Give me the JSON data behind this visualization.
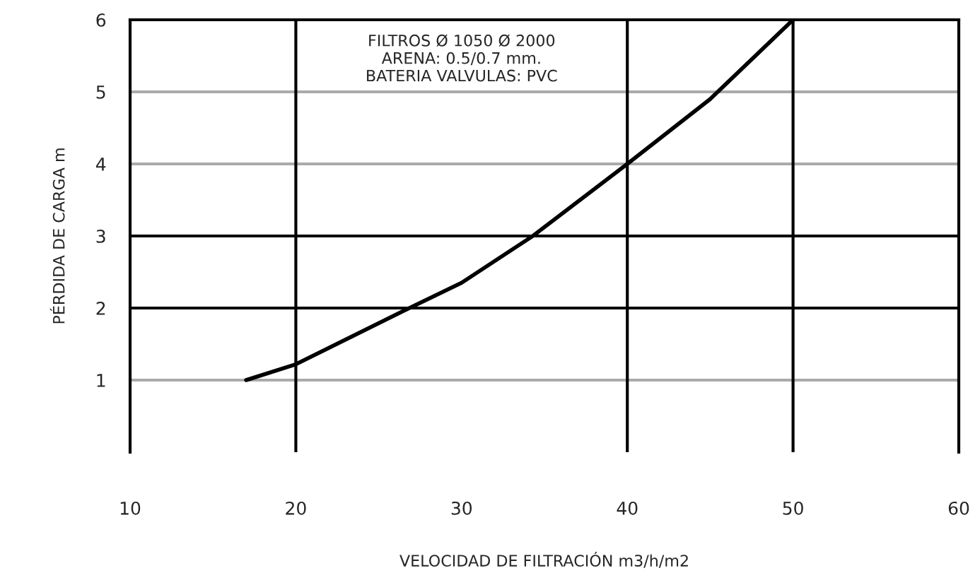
{
  "chart_data": {
    "type": "line",
    "xlabel": "VELOCIDAD DE FILTRACIÓN m3/h/m2",
    "ylabel": "PÉRDIDA DE CARGA m",
    "annotations": [
      "FILTROS Ø 1050 Ø 2000\nARENA: 0.5/0.7 mm.\nBATERIA VALVULAS: PVC"
    ],
    "series": [
      {
        "color": "#000000",
        "x": [
          17,
          20,
          26.5,
          30,
          34.3,
          40,
          45,
          50
        ],
        "values": [
          1,
          1.22,
          1.96,
          2.35,
          3,
          4,
          4.9,
          6
        ]
      }
    ],
    "xlim": [
      10,
      60
    ],
    "xticks": [
      10,
      20,
      30,
      40,
      50,
      60
    ],
    "ylim": [
      0,
      6
    ],
    "yticks": [
      1,
      2,
      3,
      4,
      5,
      6
    ],
    "marker": "none",
    "line_style": "solid",
    "ref_lines": [
      {
        "axis": "y",
        "value": 1,
        "color": "#aaaaaa"
      },
      {
        "axis": "y",
        "value": 4,
        "color": "#aaaaaa"
      },
      {
        "axis": "y",
        "value": 5,
        "color": "#aaaaaa"
      },
      {
        "axis": "y",
        "value": 2,
        "color": "#000000"
      },
      {
        "axis": "y",
        "value": 3,
        "color": "#000000"
      },
      {
        "axis": "x",
        "value": 20,
        "color": "#000000"
      },
      {
        "axis": "x",
        "value": 40,
        "color": "#000000"
      },
      {
        "axis": "x",
        "value": 50,
        "color": "#000000"
      }
    ]
  }
}
